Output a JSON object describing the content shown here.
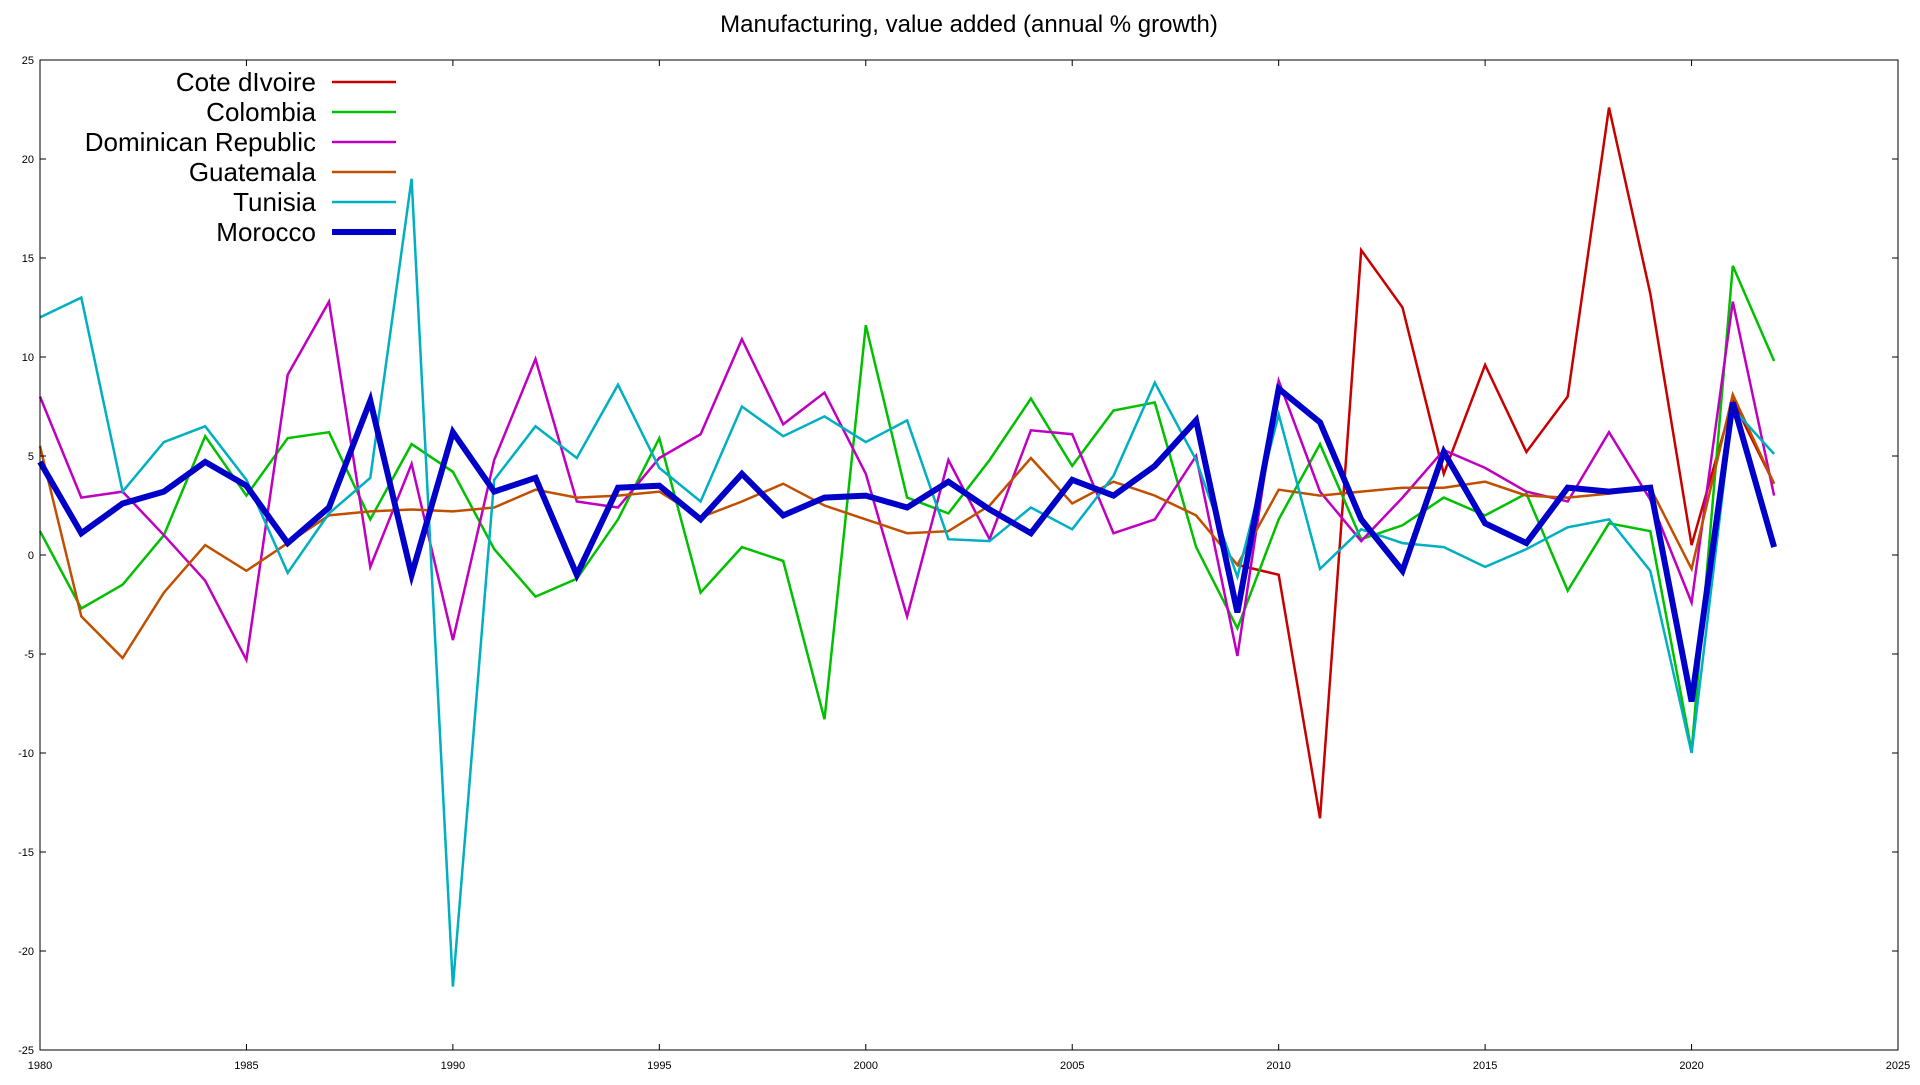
{
  "chart_data": {
    "type": "line",
    "title": "Manufacturing, value added (annual % growth)",
    "xlabel": "",
    "ylabel": "",
    "xlim": [
      1980,
      2025
    ],
    "ylim": [
      -25,
      25
    ],
    "x_ticks": [
      1980,
      1985,
      1990,
      1995,
      2000,
      2005,
      2010,
      2015,
      2020,
      2025
    ],
    "y_ticks": [
      -25,
      -20,
      -15,
      -10,
      -5,
      0,
      5,
      10,
      15,
      20,
      25
    ],
    "x_tick_labels": [
      "1980",
      "1985",
      "1990",
      "1995",
      "2000",
      "2005",
      "2010",
      "2015",
      "2020",
      "2025"
    ],
    "y_tick_labels": [
      "-25",
      "-20",
      "-15",
      "-10",
      "-5",
      "0",
      "5",
      "10",
      "15",
      "20",
      "25"
    ],
    "grid": false,
    "legend_position": "top-left",
    "series": [
      {
        "name": "Cote dIvoire",
        "color": "#c80000",
        "line_style": "thin",
        "points": [
          [
            2009,
            -0.5
          ],
          [
            2010,
            -1
          ],
          [
            2011,
            -13.3
          ],
          [
            2012,
            15.4
          ],
          [
            2013,
            12.5
          ],
          [
            2014,
            4.1
          ],
          [
            2015,
            9.6
          ],
          [
            2016,
            5.2
          ],
          [
            2017,
            8
          ],
          [
            2018,
            22.6
          ],
          [
            2019,
            13.2
          ],
          [
            2020,
            0.5
          ],
          [
            2021,
            7.8
          ],
          [
            2022,
            3.6
          ]
        ]
      },
      {
        "name": "Colombia",
        "color": "#00c000",
        "line_style": "thin",
        "points": [
          [
            1980,
            1.2
          ],
          [
            1981,
            -2.7
          ],
          [
            1982,
            -1.5
          ],
          [
            1983,
            1
          ],
          [
            1984,
            6
          ],
          [
            1985,
            3
          ],
          [
            1986,
            5.9
          ],
          [
            1987,
            6.2
          ],
          [
            1988,
            1.8
          ],
          [
            1989,
            5.6
          ],
          [
            1990,
            4.2
          ],
          [
            1991,
            0.3
          ],
          [
            1992,
            -2.1
          ],
          [
            1993,
            -1.2
          ],
          [
            1994,
            1.8
          ],
          [
            1995,
            5.9
          ],
          [
            1996,
            -1.9
          ],
          [
            1997,
            0.4
          ],
          [
            1998,
            -0.3
          ],
          [
            1999,
            -8.3
          ],
          [
            2000,
            11.6
          ],
          [
            2001,
            2.9
          ],
          [
            2002,
            2.1
          ],
          [
            2003,
            4.8
          ],
          [
            2004,
            7.9
          ],
          [
            2005,
            4.5
          ],
          [
            2006,
            7.3
          ],
          [
            2007,
            7.7
          ],
          [
            2008,
            0.4
          ],
          [
            2009,
            -3.7
          ],
          [
            2010,
            1.8
          ],
          [
            2011,
            5.6
          ],
          [
            2012,
            0.8
          ],
          [
            2013,
            1.5
          ],
          [
            2014,
            2.9
          ],
          [
            2015,
            2
          ],
          [
            2016,
            3.1
          ],
          [
            2017,
            -1.8
          ],
          [
            2018,
            1.6
          ],
          [
            2019,
            1.2
          ],
          [
            2020,
            -9.9
          ],
          [
            2021,
            14.6
          ],
          [
            2022,
            9.8
          ]
        ]
      },
      {
        "name": "Dominican Republic",
        "color": "#c000c0",
        "line_style": "thin",
        "points": [
          [
            1980,
            8
          ],
          [
            1981,
            2.9
          ],
          [
            1982,
            3.2
          ],
          [
            1983,
            1
          ],
          [
            1984,
            -1.3
          ],
          [
            1985,
            -5.3
          ],
          [
            1986,
            9.1
          ],
          [
            1987,
            12.8
          ],
          [
            1988,
            -0.6
          ],
          [
            1989,
            4.6
          ],
          [
            1990,
            -4.3
          ],
          [
            1991,
            4.8
          ],
          [
            1992,
            9.9
          ],
          [
            1993,
            2.7
          ],
          [
            1994,
            2.4
          ],
          [
            1995,
            4.9
          ],
          [
            1996,
            6.1
          ],
          [
            1997,
            10.9
          ],
          [
            1998,
            6.6
          ],
          [
            1999,
            8.2
          ],
          [
            2000,
            4.1
          ],
          [
            2001,
            -3.1
          ],
          [
            2002,
            4.8
          ],
          [
            2003,
            0.8
          ],
          [
            2004,
            6.3
          ],
          [
            2005,
            6.1
          ],
          [
            2006,
            1.1
          ],
          [
            2007,
            1.8
          ],
          [
            2008,
            5
          ],
          [
            2009,
            -5.1
          ],
          [
            2010,
            8.8
          ],
          [
            2011,
            3.2
          ],
          [
            2012,
            0.7
          ],
          [
            2013,
            2.9
          ],
          [
            2014,
            5.3
          ],
          [
            2015,
            4.4
          ],
          [
            2016,
            3.2
          ],
          [
            2017,
            2.7
          ],
          [
            2018,
            6.2
          ],
          [
            2019,
            2.8
          ],
          [
            2020,
            -2.4
          ],
          [
            2021,
            12.8
          ],
          [
            2022,
            3
          ]
        ]
      },
      {
        "name": "Guatemala",
        "color": "#c05000",
        "line_style": "thin",
        "points": [
          [
            1980,
            5.5
          ],
          [
            1981,
            -3.1
          ],
          [
            1982,
            -5.2
          ],
          [
            1983,
            -1.9
          ],
          [
            1984,
            0.5
          ],
          [
            1985,
            -0.8
          ],
          [
            1986,
            0.6
          ],
          [
            1987,
            2
          ],
          [
            1988,
            2.2
          ],
          [
            1989,
            2.3
          ],
          [
            1990,
            2.2
          ],
          [
            1991,
            2.4
          ],
          [
            1992,
            3.3
          ],
          [
            1993,
            2.9
          ],
          [
            1994,
            3
          ],
          [
            1995,
            3.2
          ],
          [
            1996,
            1.9
          ],
          [
            1997,
            2.7
          ],
          [
            1998,
            3.6
          ],
          [
            1999,
            2.5
          ],
          [
            2000,
            1.8
          ],
          [
            2001,
            1.1
          ],
          [
            2002,
            1.2
          ],
          [
            2003,
            2.5
          ],
          [
            2004,
            4.9
          ],
          [
            2005,
            2.6
          ],
          [
            2006,
            3.7
          ],
          [
            2007,
            3
          ],
          [
            2008,
            2
          ],
          [
            2009,
            -0.5
          ],
          [
            2010,
            3.3
          ],
          [
            2011,
            3
          ],
          [
            2012,
            3.2
          ],
          [
            2013,
            3.4
          ],
          [
            2014,
            3.4
          ],
          [
            2015,
            3.7
          ],
          [
            2016,
            3
          ],
          [
            2017,
            2.9
          ],
          [
            2018,
            3.1
          ],
          [
            2019,
            3.4
          ],
          [
            2020,
            -0.7
          ],
          [
            2021,
            8.1
          ],
          [
            2022,
            3.6
          ]
        ]
      },
      {
        "name": "Tunisia",
        "color": "#00b0c0",
        "line_style": "thin",
        "points": [
          [
            1980,
            12
          ],
          [
            1981,
            13
          ],
          [
            1982,
            3.2
          ],
          [
            1983,
            5.7
          ],
          [
            1984,
            6.5
          ],
          [
            1985,
            3.8
          ],
          [
            1986,
            -0.9
          ],
          [
            1987,
            2.1
          ],
          [
            1988,
            3.9
          ],
          [
            1989,
            19
          ],
          [
            1990,
            -21.8
          ],
          [
            1991,
            3.8
          ],
          [
            1992,
            6.5
          ],
          [
            1993,
            4.9
          ],
          [
            1994,
            8.6
          ],
          [
            1995,
            4.4
          ],
          [
            1996,
            2.7
          ],
          [
            1997,
            7.5
          ],
          [
            1998,
            6
          ],
          [
            1999,
            7
          ],
          [
            2000,
            5.7
          ],
          [
            2001,
            6.8
          ],
          [
            2002,
            0.8
          ],
          [
            2003,
            0.7
          ],
          [
            2004,
            2.4
          ],
          [
            2005,
            1.3
          ],
          [
            2006,
            4
          ],
          [
            2007,
            8.7
          ],
          [
            2008,
            4.8
          ],
          [
            2009,
            -1.1
          ],
          [
            2010,
            7.1
          ],
          [
            2011,
            -0.7
          ],
          [
            2012,
            1.3
          ],
          [
            2013,
            0.6
          ],
          [
            2014,
            0.4
          ],
          [
            2015,
            -0.6
          ],
          [
            2016,
            0.3
          ],
          [
            2017,
            1.4
          ],
          [
            2018,
            1.8
          ],
          [
            2019,
            -0.8
          ],
          [
            2020,
            -10
          ],
          [
            2021,
            7.4
          ],
          [
            2022,
            5.1
          ]
        ]
      },
      {
        "name": "Morocco",
        "color": "#0000c8",
        "line_style": "thick",
        "points": [
          [
            1980,
            4.7
          ],
          [
            1981,
            1.1
          ],
          [
            1982,
            2.6
          ],
          [
            1983,
            3.2
          ],
          [
            1984,
            4.7
          ],
          [
            1985,
            3.5
          ],
          [
            1986,
            0.6
          ],
          [
            1987,
            2.4
          ],
          [
            1988,
            7.8
          ],
          [
            1989,
            -1
          ],
          [
            1990,
            6.2
          ],
          [
            1991,
            3.2
          ],
          [
            1992,
            3.9
          ],
          [
            1993,
            -1
          ],
          [
            1994,
            3.4
          ],
          [
            1995,
            3.5
          ],
          [
            1996,
            1.8
          ],
          [
            1997,
            4.1
          ],
          [
            1998,
            2
          ],
          [
            1999,
            2.9
          ],
          [
            2000,
            3
          ],
          [
            2001,
            2.4
          ],
          [
            2002,
            3.7
          ],
          [
            2003,
            2.3
          ],
          [
            2004,
            1.1
          ],
          [
            2005,
            3.8
          ],
          [
            2006,
            3
          ],
          [
            2007,
            4.5
          ],
          [
            2008,
            6.8
          ],
          [
            2009,
            -2.9
          ],
          [
            2010,
            8.4
          ],
          [
            2011,
            6.7
          ],
          [
            2012,
            1.8
          ],
          [
            2013,
            -0.8
          ],
          [
            2014,
            5.2
          ],
          [
            2015,
            1.6
          ],
          [
            2016,
            0.6
          ],
          [
            2017,
            3.4
          ],
          [
            2018,
            3.2
          ],
          [
            2019,
            3.4
          ],
          [
            2020,
            -7.4
          ],
          [
            2021,
            7.7
          ],
          [
            2022,
            0.4
          ]
        ]
      }
    ]
  }
}
